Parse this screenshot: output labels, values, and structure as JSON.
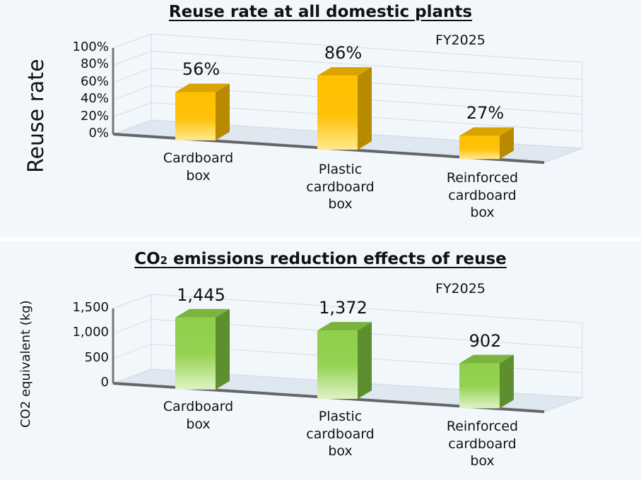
{
  "chart_data": [
    {
      "type": "bar",
      "title": "Reuse rate at all domestic plants",
      "note": "FY2025",
      "ylabel": "Reuse rate",
      "xlabel": "",
      "categories": [
        "Cardboard\nbox",
        "Plastic\ncardboard\nbox",
        "Reinforced\ncardboard\nbox"
      ],
      "values": [
        56,
        86,
        27
      ],
      "value_labels": [
        "56%",
        "86%",
        "27%"
      ],
      "ylim": [
        0,
        100
      ],
      "yticks": [
        "0%",
        "20%",
        "40%",
        "60%",
        "80%",
        "100%"
      ],
      "grid": true,
      "color": "#ffc000"
    },
    {
      "type": "bar",
      "title_parts": [
        "CO",
        "2",
        " emissions reduction effects of reuse"
      ],
      "title": "CO2 emissions reduction effects of reuse",
      "note": "FY2025",
      "ylabel": "CO2 equivalent (kg)",
      "xlabel": "",
      "categories": [
        "Cardboard\nbox",
        "Plastic\ncardboard\nbox",
        "Reinforced\ncardboard\nbox"
      ],
      "values": [
        1445,
        1372,
        902
      ],
      "value_labels": [
        "1,445",
        "1,372",
        "902"
      ],
      "ylim": [
        0,
        1500
      ],
      "yticks": [
        "0",
        "500",
        "1,000",
        "1,500"
      ],
      "grid": true,
      "color": "#92d050"
    }
  ]
}
